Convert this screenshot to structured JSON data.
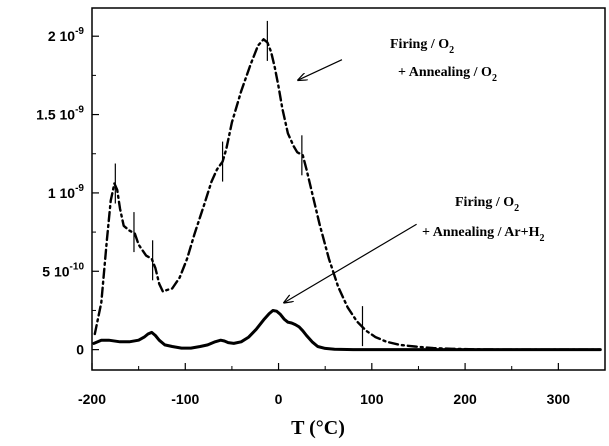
{
  "chart_data": {
    "type": "line",
    "title": "",
    "xlabel": "T (°C)",
    "ylabel": "",
    "xlim": [
      -200,
      350
    ],
    "ylim": [
      -1.3e-10,
      2.18e-09
    ],
    "grid": false,
    "legend": "none",
    "x_ticks": [
      {
        "value": -200,
        "label": "-200"
      },
      {
        "value": -100,
        "label": "-100"
      },
      {
        "value": 0,
        "label": "0"
      },
      {
        "value": 100,
        "label": "100"
      },
      {
        "value": 200,
        "label": "200"
      },
      {
        "value": 300,
        "label": "300"
      }
    ],
    "y_ticks": [
      {
        "value": 0,
        "base": "0",
        "exp": ""
      },
      {
        "value": 5e-10,
        "base": "5 10",
        "exp": "-10"
      },
      {
        "value": 1e-09,
        "base": "1 10",
        "exp": "-9"
      },
      {
        "value": 1.5e-09,
        "base": "1.5 10",
        "exp": "-9"
      },
      {
        "value": 2e-09,
        "base": "2 10",
        "exp": "-9"
      }
    ],
    "series": [
      {
        "style": "dash-dot",
        "color": "#000000",
        "x": [
          -197,
          -190,
          -184,
          -180,
          -176,
          -173,
          -170,
          -166,
          -160,
          -154,
          -150,
          -142,
          -136,
          -132,
          -128,
          -124,
          -120,
          -114,
          -106,
          -98,
          -90,
          -80,
          -72,
          -66,
          -60,
          -56,
          -50,
          -40,
          -30,
          -22,
          -16,
          -12,
          -8,
          -4,
          0,
          4,
          10,
          16,
          20,
          26,
          30,
          36,
          44,
          54,
          64,
          74,
          84,
          94,
          104,
          116,
          130,
          146,
          166,
          186,
          210,
          240,
          270,
          300,
          325,
          345
        ],
        "y": [
          1e-10,
          3e-10,
          7e-10,
          9.5e-10,
          1.06e-09,
          1.02e-09,
          9e-10,
          7.9e-10,
          7.6e-10,
          7.4e-10,
          6.7e-10,
          6e-10,
          5.8e-10,
          5.2e-10,
          4.2e-10,
          3.7e-10,
          3.8e-10,
          3.9e-10,
          4.6e-10,
          5.8e-10,
          7.4e-10,
          9.2e-10,
          1.07e-09,
          1.15e-09,
          1.2e-09,
          1.28e-09,
          1.45e-09,
          1.65e-09,
          1.82e-09,
          1.94e-09,
          1.98e-09,
          1.96e-09,
          1.9e-09,
          1.8e-09,
          1.68e-09,
          1.54e-09,
          1.38e-09,
          1.3e-09,
          1.26e-09,
          1.24e-09,
          1.15e-09,
          1e-09,
          8e-10,
          5.8e-10,
          4e-10,
          2.7e-10,
          1.8e-10,
          1.2e-10,
          8e-11,
          5e-11,
          3e-11,
          2e-11,
          1e-11,
          5e-12,
          2e-12,
          0,
          0,
          0,
          0,
          0
        ]
      },
      {
        "style": "solid",
        "color": "#000000",
        "x": [
          -198,
          -190,
          -182,
          -170,
          -160,
          -150,
          -144,
          -140,
          -136,
          -132,
          -128,
          -122,
          -114,
          -104,
          -94,
          -84,
          -76,
          -68,
          -62,
          -58,
          -54,
          -48,
          -40,
          -32,
          -24,
          -16,
          -10,
          -6,
          -2,
          2,
          6,
          10,
          14,
          18,
          22,
          26,
          30,
          36,
          42,
          50,
          60,
          80,
          120,
          200,
          280,
          345
        ],
        "y": [
          4e-11,
          6e-11,
          6e-11,
          5e-11,
          5e-11,
          6e-11,
          8e-11,
          1e-10,
          1.1e-10,
          9e-11,
          6e-11,
          3e-11,
          2e-11,
          1e-11,
          1e-11,
          2e-11,
          3e-11,
          5e-11,
          6e-11,
          5.5e-11,
          4.5e-11,
          4e-11,
          5e-11,
          8e-11,
          1.3e-10,
          1.9e-10,
          2.3e-10,
          2.5e-10,
          2.45e-10,
          2.25e-10,
          1.95e-10,
          1.75e-10,
          1.7e-10,
          1.6e-10,
          1.45e-10,
          1.2e-10,
          9e-11,
          5e-11,
          2e-11,
          8e-12,
          3e-12,
          0,
          0,
          0,
          0,
          0
        ]
      }
    ],
    "markers": [
      {
        "x": -175,
        "y": 1.06e-09
      },
      {
        "x": -155,
        "y": 7.5e-10
      },
      {
        "x": -135,
        "y": 5.7e-10
      },
      {
        "x": -60,
        "y": 1.2e-09
      },
      {
        "x": -12,
        "y": 1.97e-09
      },
      {
        "x": 25,
        "y": 1.24e-09
      },
      {
        "x": 90,
        "y": 1.5e-10
      }
    ],
    "annotations": [
      {
        "line1": "Firing / O",
        "line1_sub": "2",
        "line2": "+ Annealing / O",
        "line2_sub": "2",
        "arrow_from": [
          68,
          1.85e-09
        ],
        "arrow_to": [
          21,
          1.72e-09
        ]
      },
      {
        "line1": "Firing / O",
        "line1_sub": "2",
        "line2": "+ Annealing / Ar+H",
        "line2_sub": "2",
        "arrow_from": [
          148,
          8e-10
        ],
        "arrow_to": [
          6,
          3e-10
        ]
      }
    ]
  }
}
